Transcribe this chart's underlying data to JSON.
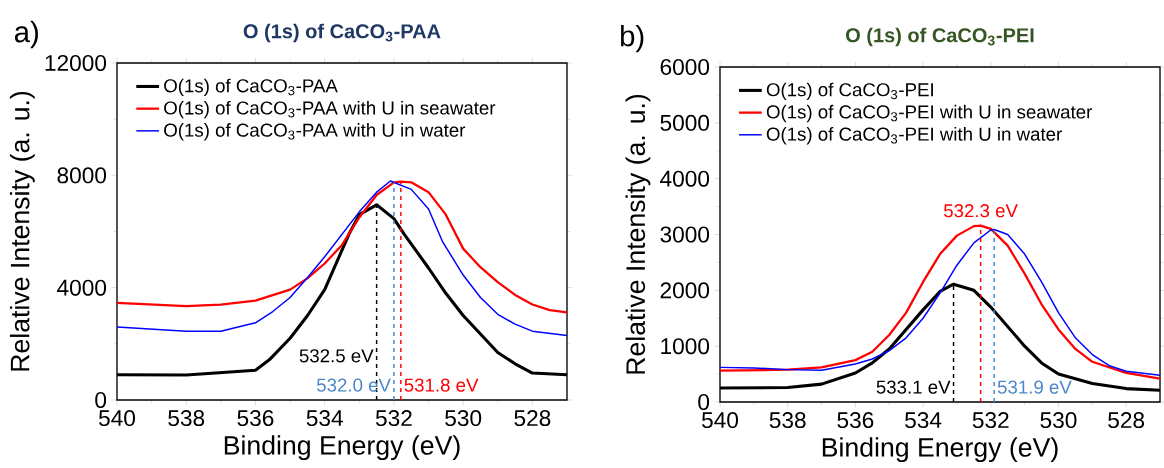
{
  "chart_data": [
    {
      "type": "line",
      "title": "O (1s) of CaCO$_{3}$-PAA",
      "xlabel": "Binding Energy (eV)",
      "ylabel": "Relative Intensity (a. u.)",
      "xlim": [
        540,
        527
      ],
      "ylim": [
        0,
        12000
      ],
      "xticks": [
        540,
        538,
        536,
        534,
        532,
        530,
        528
      ],
      "yticks": [
        0,
        4000,
        8000,
        12000
      ],
      "legend": "top left",
      "grid": false,
      "line_style": "solid",
      "marker": "none",
      "series": [
        {
          "name": "O(1s) of CaCO$_{3}$-PAA",
          "color": "#000000",
          "x": [
            540,
            538,
            536,
            535.6,
            535,
            534.5,
            534,
            533.3,
            533,
            532.5,
            532,
            531.7,
            531,
            530.5,
            530,
            529,
            528.5,
            528,
            527
          ],
          "values": [
            900,
            890,
            1060,
            1430,
            2200,
            3000,
            3930,
            5900,
            6600,
            6950,
            6460,
            5900,
            4700,
            3800,
            3010,
            1690,
            1290,
            960,
            900
          ]
        },
        {
          "name": "O(1s) of CaCO$_{3}$-PAA with U in seawater",
          "color": "#ff0000",
          "x": [
            540,
            538,
            537,
            536,
            535,
            534.5,
            534,
            533.5,
            533,
            532.5,
            532,
            531.8,
            531.5,
            531,
            530.5,
            530,
            529.5,
            529,
            528.5,
            528,
            527.5,
            527
          ],
          "values": [
            3460,
            3340,
            3400,
            3540,
            3930,
            4330,
            4860,
            5520,
            6500,
            7300,
            7750,
            7780,
            7750,
            7400,
            6600,
            5390,
            4730,
            4200,
            3740,
            3400,
            3200,
            3120
          ]
        },
        {
          "name": "O(1s) of CaCO$_{3}$-PAA with U in water",
          "color": "#0000ff",
          "x": [
            540,
            538,
            537,
            536,
            535.5,
            535,
            534.5,
            534,
            533.5,
            533,
            532.5,
            532.1,
            531.5,
            531,
            530.6,
            530,
            529.5,
            529,
            528.5,
            528,
            527
          ],
          "values": [
            2600,
            2450,
            2450,
            2750,
            3150,
            3650,
            4350,
            5100,
            5900,
            6700,
            7400,
            7800,
            7500,
            6800,
            5650,
            4450,
            3650,
            3050,
            2700,
            2450,
            2300
          ]
        }
      ],
      "ref_lines": [
        {
          "axis": "x",
          "value": 532.5,
          "color": "#000000",
          "line_style": "dashed",
          "label": "532.5 eV"
        },
        {
          "axis": "x",
          "value": 532.0,
          "color": "#4a86c8",
          "line_style": "dashed",
          "label": "532.0 eV"
        },
        {
          "axis": "x",
          "value": 531.8,
          "color": "#ff0000",
          "line_style": "dashed",
          "label": "531.8 eV"
        }
      ],
      "annotations": [
        "a)"
      ]
    },
    {
      "type": "line",
      "title": "O (1s) of CaCO$_{3}$-PEI",
      "xlabel": "Binding Energy (eV)",
      "ylabel": "Relative Intensity (a. u.)",
      "xlim": [
        540,
        527
      ],
      "ylim": [
        0,
        6000
      ],
      "xticks": [
        540,
        538,
        536,
        534,
        532,
        530,
        528
      ],
      "yticks": [
        0,
        1000,
        2000,
        3000,
        4000,
        5000,
        6000
      ],
      "legend": "top left",
      "grid": false,
      "line_style": "solid",
      "marker": "none",
      "series": [
        {
          "name": "O(1s) of CaCO$_{3}$-PEI",
          "color": "#000000",
          "x": [
            540,
            538,
            537,
            536,
            535.5,
            535,
            534.5,
            534,
            533.5,
            533.1,
            532.5,
            532,
            531.5,
            531,
            530.5,
            530,
            529,
            528,
            527
          ],
          "values": [
            250,
            260,
            320,
            520,
            700,
            950,
            1300,
            1650,
            1980,
            2110,
            2000,
            1700,
            1350,
            1000,
            700,
            500,
            330,
            240,
            210
          ]
        },
        {
          "name": "O(1s) of CaCO$_{3}$-PEI with U in seawater",
          "color": "#ff0000",
          "x": [
            540,
            538,
            537,
            536,
            535.5,
            535,
            534.5,
            534,
            533.5,
            533,
            532.5,
            532.3,
            532,
            531.5,
            531,
            530.5,
            530,
            529.5,
            529,
            528,
            527
          ],
          "values": [
            560,
            580,
            620,
            750,
            900,
            1200,
            1600,
            2150,
            2650,
            2980,
            3150,
            3160,
            3100,
            2800,
            2300,
            1750,
            1300,
            950,
            720,
            520,
            420
          ]
        },
        {
          "name": "O(1s) of CaCO$_{3}$-PEI with U in water",
          "color": "#0000ff",
          "x": [
            540,
            539,
            538,
            537,
            536,
            535.5,
            535,
            534.5,
            534,
            533.5,
            533,
            532.5,
            532,
            531.9,
            531.5,
            531,
            530.5,
            530,
            529.5,
            529,
            528.5,
            528,
            527
          ],
          "values": [
            620,
            610,
            580,
            570,
            680,
            770,
            920,
            1150,
            1500,
            1950,
            2450,
            2850,
            3080,
            3090,
            3000,
            2650,
            2150,
            1600,
            1150,
            850,
            650,
            550,
            480
          ]
        }
      ],
      "ref_lines": [
        {
          "axis": "x",
          "value": 533.1,
          "color": "#000000",
          "line_style": "dashed",
          "label": "533.1 eV"
        },
        {
          "axis": "x",
          "value": 531.9,
          "color": "#4a86c8",
          "line_style": "dashed",
          "label": "531.9 eV"
        },
        {
          "axis": "x",
          "value": 532.3,
          "color": "#ff0000",
          "line_style": "dashed",
          "label": "532.3 eV"
        }
      ],
      "annotations": [
        "b)"
      ]
    }
  ]
}
